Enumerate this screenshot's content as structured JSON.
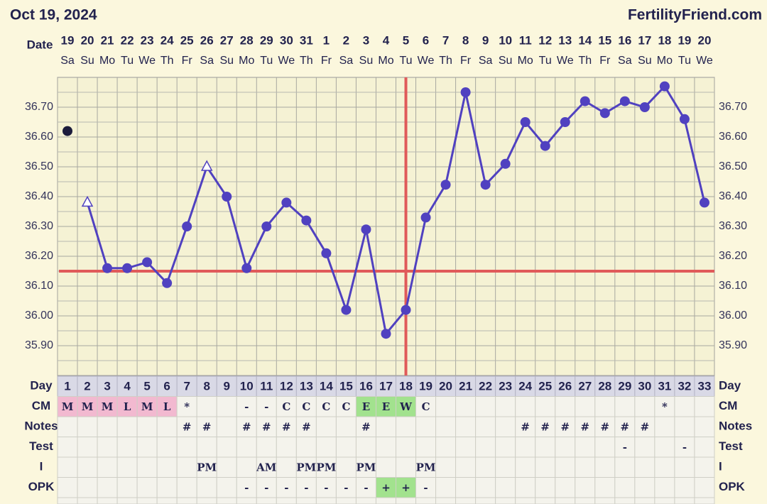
{
  "header": {
    "date": "Oct 19, 2024",
    "site": "FertilityFriend.com"
  },
  "chart_data": {
    "type": "line",
    "date_label": "Date",
    "dates": [
      19,
      20,
      21,
      22,
      23,
      24,
      25,
      26,
      27,
      28,
      29,
      30,
      31,
      1,
      2,
      3,
      4,
      5,
      6,
      7,
      8,
      9,
      10,
      11,
      12,
      13,
      14,
      15,
      16,
      17,
      18,
      19,
      20
    ],
    "weekdays": [
      "Sa",
      "Su",
      "Mo",
      "Tu",
      "We",
      "Th",
      "Fr",
      "Sa",
      "Su",
      "Mo",
      "Tu",
      "We",
      "Th",
      "Fr",
      "Sa",
      "Su",
      "Mo",
      "Tu",
      "We",
      "Th",
      "Fr",
      "Sa",
      "Su",
      "Mo",
      "Tu",
      "We",
      "Th",
      "Fr",
      "Sa",
      "Su",
      "Mo",
      "Tu",
      "We"
    ],
    "ylim": [
      35.8,
      36.8
    ],
    "yticks": [
      {
        "value": 35.9,
        "label": "35.90"
      },
      {
        "value": 36.0,
        "label": "36.00"
      },
      {
        "value": 36.1,
        "label": "36.10"
      },
      {
        "value": 36.2,
        "label": "36.20"
      },
      {
        "value": 36.3,
        "label": "36.30"
      },
      {
        "value": 36.4,
        "label": "36.40"
      },
      {
        "value": 36.5,
        "label": "36.50"
      },
      {
        "value": 36.6,
        "label": "36.60"
      },
      {
        "value": 36.7,
        "label": "36.70"
      }
    ],
    "grid": true,
    "series": [
      {
        "color": "#5041c0",
        "connect": true,
        "open_points": [
          1,
          7
        ],
        "values": [
          null,
          36.38,
          36.16,
          36.16,
          36.18,
          36.11,
          36.3,
          36.5,
          36.4,
          36.16,
          36.3,
          36.38,
          36.32,
          36.21,
          36.02,
          36.29,
          35.94,
          36.02,
          36.33,
          36.44,
          36.75,
          36.44,
          36.51,
          36.65,
          36.57,
          36.65,
          36.72,
          36.68,
          36.72,
          36.7,
          36.77,
          36.66,
          36.38
        ]
      },
      {
        "color": "#1c1c3c",
        "connect": false,
        "open_points": [],
        "values": [
          36.62,
          null,
          null,
          null,
          null,
          null,
          null,
          null,
          null,
          null,
          null,
          null,
          null,
          null,
          null,
          null,
          null,
          null,
          null,
          null,
          null,
          null,
          null,
          null,
          null,
          null,
          null,
          null,
          null,
          null,
          null,
          null,
          null
        ]
      }
    ],
    "coverline": 36.15,
    "ovulation_day": 18,
    "marker_line_color": "#e05a5a"
  },
  "table": {
    "highlight_colors": {
      "M": "#f2b9d0",
      "L": "#f2b9d0",
      "E": "#a2e28e",
      "W": "#a2e28e",
      "+": "#a2e28e"
    },
    "days_label": "Day",
    "days": [
      1,
      2,
      3,
      4,
      5,
      6,
      7,
      8,
      9,
      10,
      11,
      12,
      13,
      14,
      15,
      16,
      17,
      18,
      19,
      20,
      21,
      22,
      23,
      24,
      25,
      26,
      27,
      28,
      29,
      30,
      31,
      32,
      33
    ],
    "rows": [
      {
        "label": "CM",
        "cells": [
          "M",
          "M",
          "M",
          "L",
          "M",
          "L",
          "*",
          null,
          null,
          "-",
          "-",
          "C",
          "C",
          "C",
          "C",
          "E",
          "E",
          "W",
          "C",
          null,
          null,
          null,
          null,
          null,
          null,
          null,
          null,
          null,
          null,
          null,
          "*",
          null,
          null
        ]
      },
      {
        "label": "Notes",
        "cells": [
          null,
          null,
          null,
          null,
          null,
          null,
          "#",
          "#",
          null,
          "#",
          "#",
          "#",
          "#",
          null,
          null,
          "#",
          null,
          null,
          null,
          null,
          null,
          null,
          null,
          "#",
          "#",
          "#",
          "#",
          "#",
          "#",
          "#",
          null,
          null,
          null
        ]
      },
      {
        "label": "Test",
        "cells": [
          null,
          null,
          null,
          null,
          null,
          null,
          null,
          null,
          null,
          null,
          null,
          null,
          null,
          null,
          null,
          null,
          null,
          null,
          null,
          null,
          null,
          null,
          null,
          null,
          null,
          null,
          null,
          null,
          "-",
          null,
          null,
          "-",
          null
        ]
      },
      {
        "label": "I",
        "cells": [
          null,
          null,
          null,
          null,
          null,
          null,
          null,
          "PM",
          null,
          null,
          "AM",
          null,
          "PM",
          "PM",
          null,
          "PM",
          null,
          null,
          "PM",
          null,
          null,
          null,
          null,
          null,
          null,
          null,
          null,
          null,
          null,
          null,
          null,
          null,
          null
        ]
      },
      {
        "label": "OPK",
        "cells": [
          null,
          null,
          null,
          null,
          null,
          null,
          null,
          null,
          null,
          "-",
          "-",
          "-",
          "-",
          "-",
          "-",
          "-",
          "+",
          "+",
          "-",
          null,
          null,
          null,
          null,
          null,
          null,
          null,
          null,
          null,
          null,
          null,
          null,
          null,
          null
        ]
      }
    ]
  }
}
